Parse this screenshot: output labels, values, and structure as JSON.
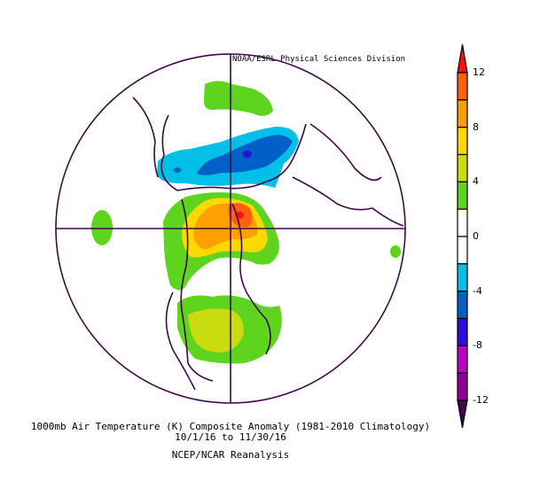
{
  "credit": "NOAA/ESRL Physical Sciences Division",
  "title": "1000mb Air Temperature (K) Composite Anomaly (1981-2010 Climatology)",
  "dates": "10/1/16  to 11/30/16",
  "source": "NCEP/NCAR Reanalysis",
  "colorbar": {
    "unit": "K",
    "ticks": [
      "12",
      "8",
      "4",
      "0",
      "-4",
      "-8",
      "-12"
    ],
    "levels": [
      {
        "range": "above 12",
        "color": "#ff1010"
      },
      {
        "range": "10 to 12",
        "color": "#ff6010"
      },
      {
        "range": "8 to 10",
        "color": "#ffa000"
      },
      {
        "range": "6 to 8",
        "color": "#ffd800"
      },
      {
        "range": "4 to 6",
        "color": "#c8dc10"
      },
      {
        "range": "2 to 4",
        "color": "#5fd41e"
      },
      {
        "range": "0 to 2",
        "color": "#ffffff"
      },
      {
        "range": "-2 to 0",
        "color": "#ffffff"
      },
      {
        "range": "-4 to -2",
        "color": "#00c0e8"
      },
      {
        "range": "-6 to -4",
        "color": "#0060c8"
      },
      {
        "range": "-8 to -6",
        "color": "#2a10d8"
      },
      {
        "range": "-10 to -8",
        "color": "#c000c8"
      },
      {
        "range": "-12 to -10",
        "color": "#900090"
      },
      {
        "range": "below -12",
        "color": "#4a0050"
      }
    ]
  },
  "map": {
    "projection": "north polar stereographic",
    "coastline_color": "#3c0a46"
  }
}
